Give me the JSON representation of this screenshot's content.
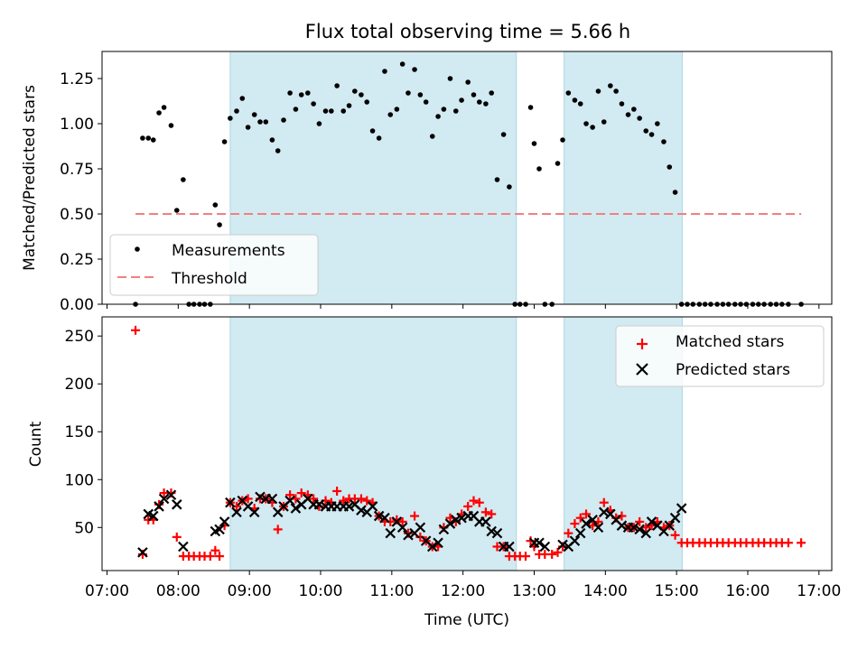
{
  "chart_data": {
    "type": "scatter",
    "title": "Flux total observing time = 5.66 h",
    "xlabel": "Time (UTC)",
    "x_ticks": [
      "07:00",
      "08:00",
      "09:00",
      "10:00",
      "11:00",
      "12:00",
      "13:00",
      "14:00",
      "15:00",
      "16:00",
      "17:00"
    ],
    "xlim": [
      6.93,
      17.18
    ],
    "shaded_intervals": [
      [
        8.73,
        12.75
      ],
      [
        13.42,
        15.08
      ]
    ],
    "shade_color": "#add8e6",
    "top_panel": {
      "ylabel": "Matched/Predicted stars",
      "ylim": [
        0,
        1.4
      ],
      "y_ticks": [
        "0.00",
        "0.25",
        "0.50",
        "0.75",
        "1.00",
        "1.25"
      ],
      "legend_position": "lower-left",
      "threshold": {
        "name": "Threshold",
        "value": 0.5,
        "x_range": [
          7.4,
          16.75
        ],
        "color": "#f08080"
      },
      "measurements": {
        "name": "Measurements",
        "color": "#000000",
        "x": [
          7.4,
          7.5,
          7.58,
          7.65,
          7.73,
          7.8,
          7.9,
          7.98,
          8.07,
          8.15,
          8.22,
          8.3,
          8.37,
          8.45,
          8.52,
          8.58,
          8.65,
          8.73,
          8.82,
          8.9,
          8.98,
          9.07,
          9.15,
          9.23,
          9.32,
          9.4,
          9.48,
          9.57,
          9.65,
          9.73,
          9.82,
          9.9,
          9.98,
          10.07,
          10.15,
          10.23,
          10.32,
          10.4,
          10.48,
          10.57,
          10.65,
          10.73,
          10.82,
          10.9,
          10.98,
          11.07,
          11.15,
          11.23,
          11.32,
          11.4,
          11.48,
          11.57,
          11.65,
          11.73,
          11.82,
          11.9,
          11.98,
          12.07,
          12.15,
          12.23,
          12.32,
          12.4,
          12.48,
          12.57,
          12.65,
          12.73,
          12.8,
          12.88,
          12.95,
          13.0,
          13.07,
          13.15,
          13.25,
          13.33,
          13.4,
          13.48,
          13.57,
          13.65,
          13.73,
          13.82,
          13.9,
          13.98,
          14.07,
          14.15,
          14.23,
          14.32,
          14.4,
          14.48,
          14.57,
          14.65,
          14.73,
          14.82,
          14.9,
          14.98,
          15.07,
          15.15,
          15.23,
          15.32,
          15.4,
          15.48,
          15.57,
          15.65,
          15.73,
          15.82,
          15.9,
          15.98,
          16.07,
          16.15,
          16.23,
          16.32,
          16.4,
          16.48,
          16.57,
          16.75
        ],
        "y": [
          0.0,
          0.92,
          0.92,
          0.91,
          1.06,
          1.09,
          0.99,
          0.52,
          0.69,
          0.0,
          0.0,
          0.0,
          0.0,
          0.0,
          0.55,
          0.44,
          0.9,
          1.03,
          1.07,
          1.14,
          0.98,
          1.05,
          1.01,
          1.01,
          0.91,
          0.85,
          1.02,
          1.17,
          1.08,
          1.16,
          1.17,
          1.11,
          1.0,
          1.07,
          1.07,
          1.21,
          1.07,
          1.1,
          1.18,
          1.16,
          1.12,
          0.96,
          0.92,
          1.29,
          1.05,
          1.08,
          1.33,
          1.17,
          1.3,
          1.16,
          1.12,
          0.93,
          1.04,
          1.08,
          1.25,
          1.07,
          1.13,
          1.23,
          1.16,
          1.12,
          1.11,
          1.17,
          0.69,
          0.94,
          0.65,
          0.0,
          0.0,
          0.0,
          1.09,
          0.89,
          0.75,
          0.0,
          0.0,
          0.78,
          0.91,
          1.17,
          1.13,
          1.11,
          1.0,
          0.98,
          1.18,
          1.01,
          1.21,
          1.18,
          1.11,
          1.05,
          1.08,
          1.03,
          0.96,
          0.94,
          1.0,
          0.9,
          0.76,
          0.62,
          0.0,
          0.0,
          0.0,
          0.0,
          0.0,
          0.0,
          0.0,
          0.0,
          0.0,
          0.0,
          0.0,
          0.0,
          0.0,
          0.0,
          0.0,
          0.0,
          0.0,
          0.0,
          0.0,
          0.0
        ]
      }
    },
    "bottom_panel": {
      "ylabel": "Count",
      "ylim": [
        5,
        270
      ],
      "y_ticks": [
        "50",
        "100",
        "150",
        "200",
        "250"
      ],
      "legend_position": "top-right",
      "series": [
        {
          "name": "Matched stars",
          "marker": "plus",
          "color": "#ff0000",
          "x": [
            7.4,
            7.5,
            7.58,
            7.65,
            7.73,
            7.8,
            7.9,
            7.98,
            8.07,
            8.15,
            8.22,
            8.3,
            8.37,
            8.45,
            8.52,
            8.58,
            8.65,
            8.73,
            8.82,
            8.9,
            8.98,
            9.07,
            9.15,
            9.23,
            9.32,
            9.4,
            9.48,
            9.57,
            9.65,
            9.73,
            9.82,
            9.9,
            9.98,
            10.07,
            10.15,
            10.23,
            10.32,
            10.4,
            10.48,
            10.57,
            10.65,
            10.73,
            10.82,
            10.9,
            10.98,
            11.07,
            11.15,
            11.23,
            11.32,
            11.4,
            11.48,
            11.57,
            11.65,
            11.73,
            11.82,
            11.9,
            11.98,
            12.07,
            12.15,
            12.23,
            12.32,
            12.4,
            12.48,
            12.57,
            12.65,
            12.73,
            12.8,
            12.88,
            12.95,
            13.0,
            13.07,
            13.15,
            13.25,
            13.33,
            13.4,
            13.48,
            13.57,
            13.65,
            13.73,
            13.82,
            13.9,
            13.98,
            14.07,
            14.15,
            14.23,
            14.32,
            14.4,
            14.48,
            14.57,
            14.65,
            14.73,
            14.82,
            14.9,
            14.98,
            15.07,
            15.15,
            15.23,
            15.32,
            15.4,
            15.48,
            15.57,
            15.65,
            15.73,
            15.82,
            15.9,
            15.98,
            16.07,
            16.15,
            16.23,
            16.32,
            16.4,
            16.48,
            16.57,
            16.75
          ],
          "y": [
            256,
            22,
            58,
            58,
            74,
            86,
            86,
            40,
            20,
            20,
            20,
            20,
            20,
            20,
            26,
            20,
            52,
            76,
            72,
            78,
            80,
            70,
            80,
            80,
            76,
            48,
            72,
            84,
            80,
            86,
            84,
            80,
            72,
            78,
            76,
            88,
            78,
            80,
            80,
            80,
            78,
            76,
            62,
            56,
            56,
            58,
            56,
            44,
            62,
            40,
            36,
            30,
            30,
            50,
            60,
            56,
            64,
            72,
            78,
            76,
            66,
            64,
            30,
            30,
            20,
            20,
            20,
            20,
            36,
            30,
            22,
            22,
            22,
            24,
            30,
            44,
            54,
            60,
            64,
            52,
            56,
            76,
            68,
            60,
            62,
            50,
            50,
            56,
            50,
            52,
            56,
            50,
            52,
            42,
            34,
            34,
            34,
            34,
            34,
            34,
            34,
            34,
            34,
            34,
            34,
            34,
            34,
            34,
            34,
            34,
            34,
            34,
            34,
            34
          ]
        },
        {
          "name": "Predicted stars",
          "marker": "x",
          "color": "#000000",
          "x": [
            7.5,
            7.58,
            7.65,
            7.73,
            7.8,
            7.9,
            7.98,
            8.07,
            8.52,
            8.58,
            8.65,
            8.73,
            8.82,
            8.9,
            8.98,
            9.07,
            9.15,
            9.23,
            9.32,
            9.4,
            9.48,
            9.57,
            9.65,
            9.73,
            9.82,
            9.9,
            9.98,
            10.07,
            10.15,
            10.23,
            10.32,
            10.4,
            10.48,
            10.57,
            10.65,
            10.73,
            10.82,
            10.9,
            10.98,
            11.07,
            11.15,
            11.23,
            11.32,
            11.4,
            11.48,
            11.57,
            11.65,
            11.73,
            11.82,
            11.9,
            11.98,
            12.07,
            12.15,
            12.23,
            12.32,
            12.4,
            12.48,
            12.57,
            12.65,
            13.0,
            13.07,
            13.15,
            13.4,
            13.48,
            13.57,
            13.65,
            13.73,
            13.82,
            13.9,
            13.98,
            14.07,
            14.15,
            14.23,
            14.32,
            14.4,
            14.48,
            14.57,
            14.65,
            14.73,
            14.82,
            14.9,
            14.98,
            15.07
          ],
          "y": [
            24,
            64,
            62,
            72,
            80,
            84,
            74,
            30,
            46,
            48,
            56,
            76,
            66,
            78,
            72,
            66,
            82,
            80,
            80,
            66,
            72,
            78,
            70,
            74,
            80,
            74,
            74,
            72,
            72,
            72,
            72,
            72,
            74,
            68,
            66,
            72,
            62,
            60,
            44,
            56,
            50,
            42,
            44,
            50,
            36,
            30,
            34,
            48,
            54,
            58,
            60,
            62,
            62,
            56,
            56,
            46,
            44,
            30,
            30,
            34,
            34,
            30,
            32,
            30,
            36,
            44,
            54,
            58,
            50,
            66,
            64,
            58,
            52,
            50,
            50,
            48,
            44,
            56,
            52,
            46,
            52,
            60,
            70
          ]
        }
      ]
    }
  }
}
